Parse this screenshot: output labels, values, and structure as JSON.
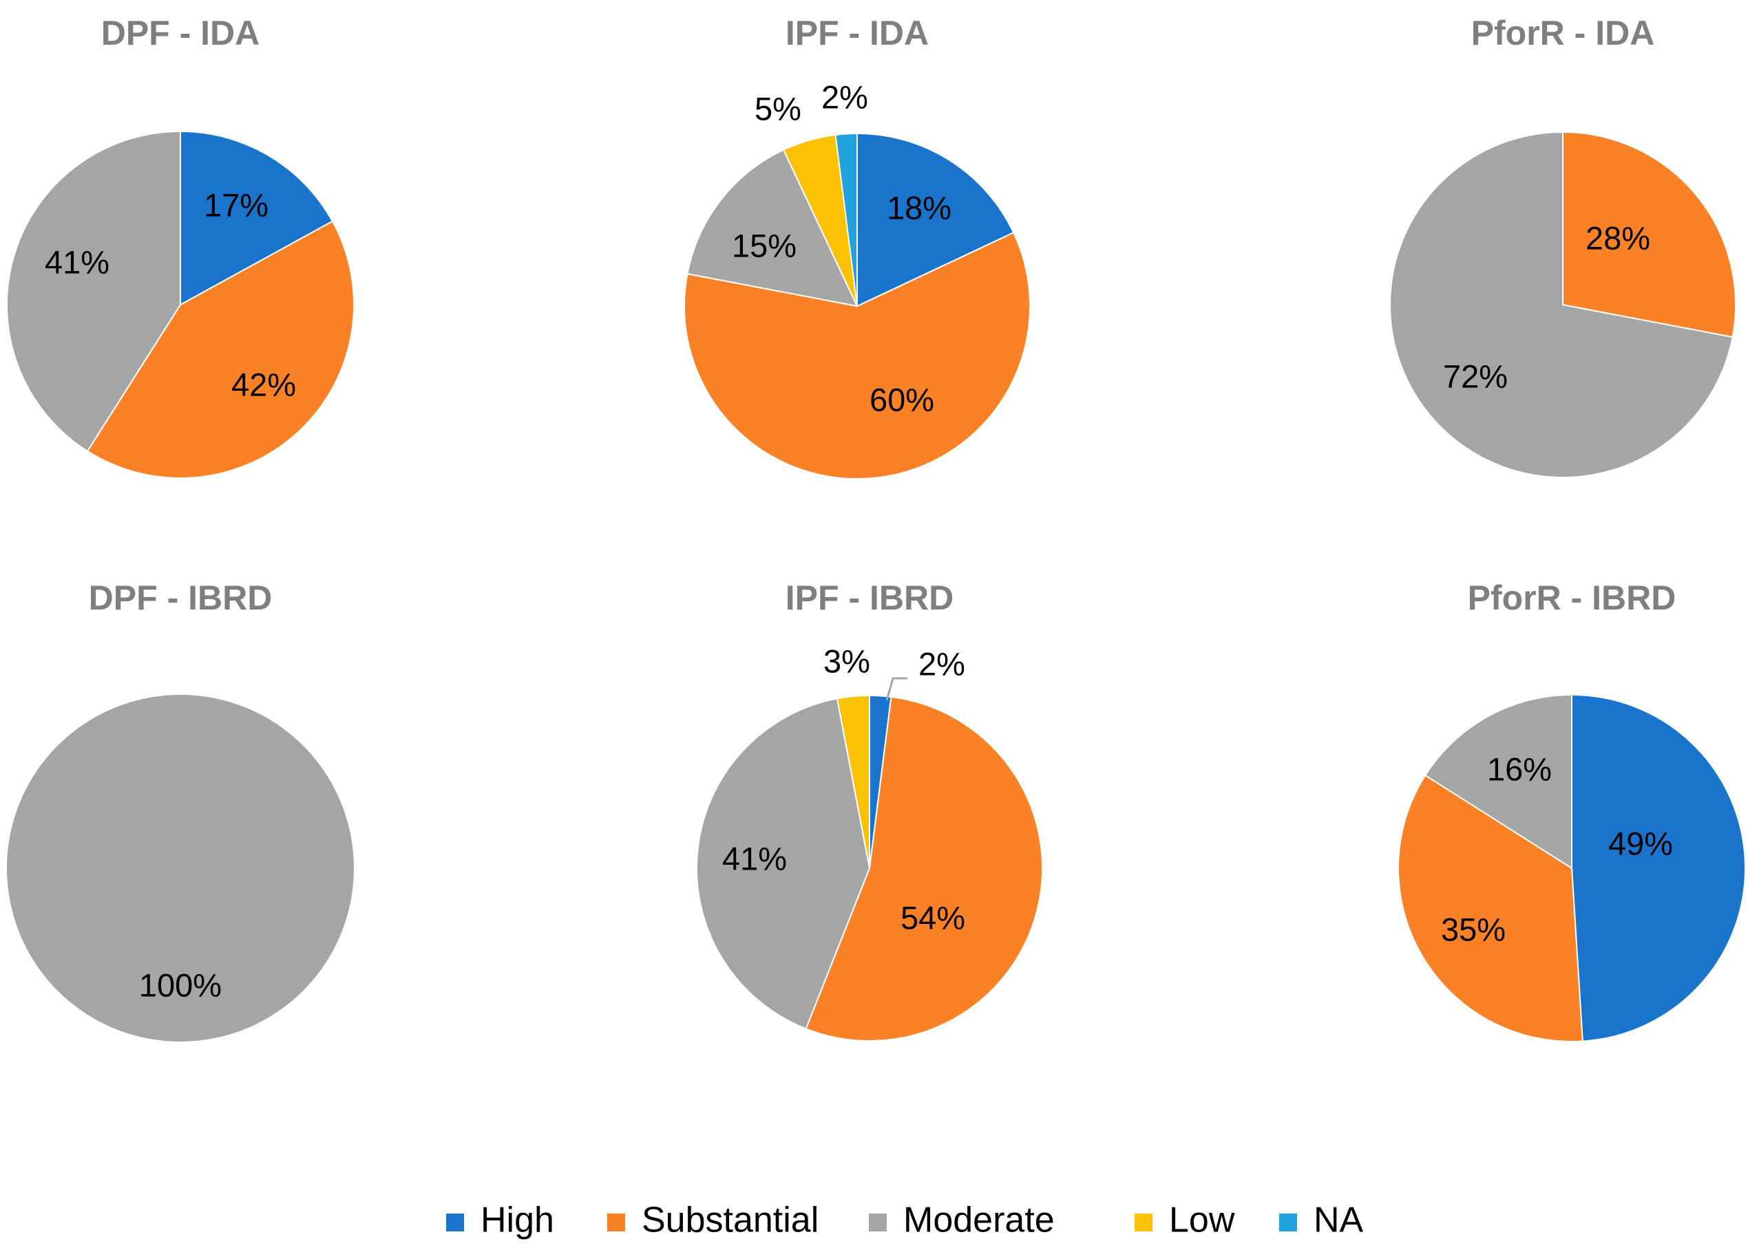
{
  "chart_data": {
    "type": "pie",
    "categories": [
      "High",
      "Substantial",
      "Moderate",
      "Low",
      "NA"
    ],
    "colors": {
      "High": "#1B74CC",
      "Substantial": "#FB8126",
      "Moderate": "#A5A5A5",
      "Low": "#FBC103",
      "NA": "#23A1DD"
    },
    "legend": {
      "position": "bottom",
      "items": [
        "High",
        "Substantial",
        "Moderate",
        "Low",
        "NA"
      ]
    },
    "charts": [
      {
        "title": "DPF - IDA",
        "slices": [
          {
            "category": "High",
            "value": 17,
            "label": "17%"
          },
          {
            "category": "Substantial",
            "value": 42,
            "label": "42%"
          },
          {
            "category": "Moderate",
            "value": 41,
            "label": "41%"
          }
        ]
      },
      {
        "title": "IPF - IDA",
        "slices": [
          {
            "category": "High",
            "value": 18,
            "label": "18%"
          },
          {
            "category": "Substantial",
            "value": 60,
            "label": "60%"
          },
          {
            "category": "Moderate",
            "value": 15,
            "label": "15%"
          },
          {
            "category": "Low",
            "value": 5,
            "label": "5%"
          },
          {
            "category": "NA",
            "value": 2,
            "label": "2%"
          }
        ]
      },
      {
        "title": "PforR - IDA",
        "slices": [
          {
            "category": "Substantial",
            "value": 28,
            "label": "28%"
          },
          {
            "category": "Moderate",
            "value": 72,
            "label": "72%"
          }
        ]
      },
      {
        "title": "DPF - IBRD",
        "slices": [
          {
            "category": "Moderate",
            "value": 100,
            "label": "100%"
          }
        ]
      },
      {
        "title": "IPF - IBRD",
        "slices": [
          {
            "category": "High",
            "value": 2,
            "label": "2%"
          },
          {
            "category": "Substantial",
            "value": 54,
            "label": "54%"
          },
          {
            "category": "Moderate",
            "value": 41,
            "label": "41%"
          },
          {
            "category": "Low",
            "value": 3,
            "label": "3%"
          }
        ]
      },
      {
        "title": "PforR - IBRD",
        "slices": [
          {
            "category": "High",
            "value": 49,
            "label": "49%"
          },
          {
            "category": "Substantial",
            "value": 35,
            "label": "35%"
          },
          {
            "category": "Moderate",
            "value": 16,
            "label": "16%"
          }
        ]
      }
    ]
  }
}
